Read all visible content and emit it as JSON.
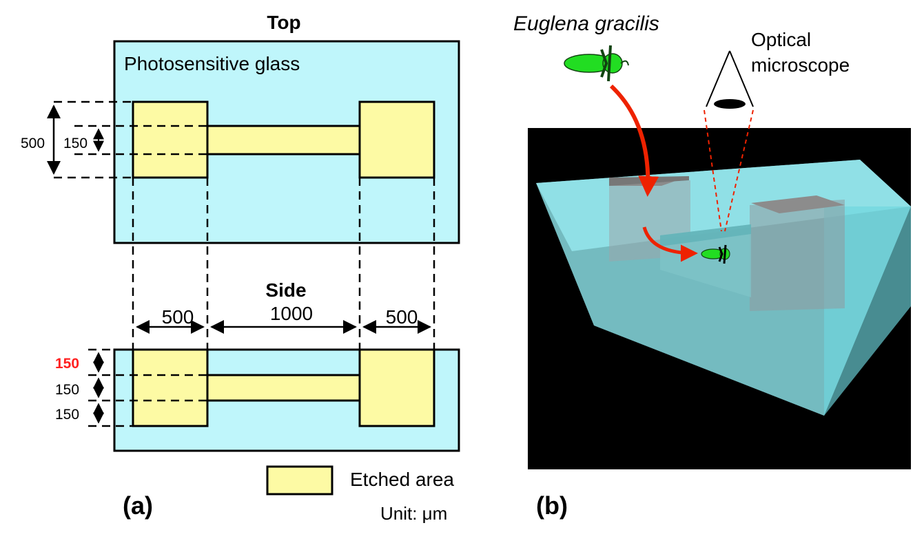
{
  "panel_a": {
    "top_title": "Top",
    "glass_label": "Photosensitive glass",
    "top_dim_outer": "500",
    "top_dim_inner": "150",
    "side_title": "Side",
    "side_dim_left": "500",
    "side_dim_mid": "1000",
    "side_dim_right": "500",
    "side_dim_v1": "150",
    "side_dim_v2": "150",
    "side_dim_v3": "150",
    "legend_label": "Etched area",
    "unit_label": "Unit: μm",
    "panel_label": "(a)"
  },
  "panel_b": {
    "organism_label": "Euglena gracilis",
    "microscope_label_line1": "Optical",
    "microscope_label_line2": "microscope",
    "panel_label": "(b)"
  },
  "colors": {
    "glass": "#bff6fb",
    "etched": "#fdfaa4",
    "euglena": "#22dd22",
    "arrow": "#ee2200",
    "highlight_dim": "#ff2020",
    "background_3d": "#000000"
  }
}
